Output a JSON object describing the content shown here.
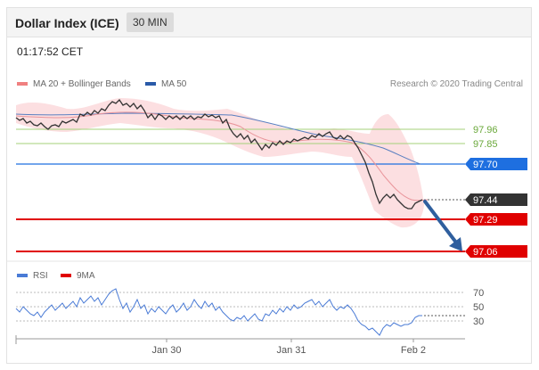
{
  "header": {
    "title": "Dollar Index (ICE)",
    "interval": "30 MIN"
  },
  "timestamp": "01:17:52 CET",
  "legend": {
    "ma20": {
      "label": "MA 20 + Bollinger Bands",
      "color": "#f08080"
    },
    "ma50": {
      "label": "MA 50",
      "color": "#2a5aa8"
    }
  },
  "copyright": "Research © 2020 Trading Central",
  "levels": [
    {
      "value": "97.96",
      "kind": "green"
    },
    {
      "value": "97.85",
      "kind": "green"
    },
    {
      "value": "97.70",
      "kind": "blue"
    },
    {
      "value": "97.44",
      "kind": "price"
    },
    {
      "value": "97.29",
      "kind": "red"
    },
    {
      "value": "97.06",
      "kind": "red"
    }
  ],
  "indicator": {
    "legend": [
      {
        "label": "RSI",
        "color": "#4a7bd6"
      },
      {
        "label": "9MA",
        "color": "#e00000"
      }
    ],
    "levels": [
      "70",
      "50",
      "30"
    ]
  },
  "x_labels": [
    "Jan 30",
    "Jan 31",
    "Feb 2"
  ],
  "colors": {
    "green": "#8bc34a",
    "blue": "#1e6fe0",
    "red": "#e00000",
    "price": "#333333",
    "arrow": "#2f5f9e"
  }
}
